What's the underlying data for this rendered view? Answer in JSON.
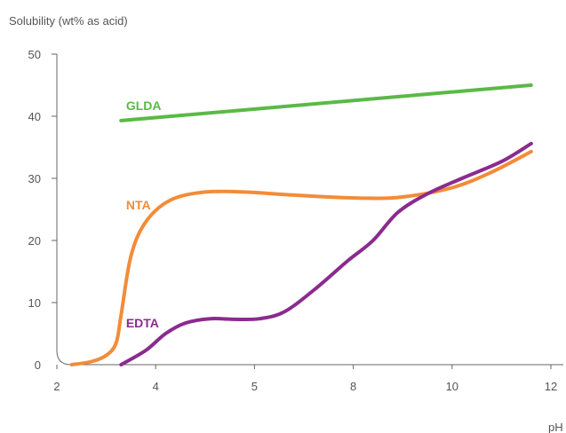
{
  "chart_data": {
    "type": "line",
    "ylabel": "Solubility (wt% as acid)",
    "xlabel": "pH",
    "x_ticks": [
      "2",
      "4",
      "5",
      "8",
      "10",
      "12"
    ],
    "y_ticks": [
      "0",
      "10",
      "20",
      "30",
      "40",
      "50"
    ],
    "ylim": [
      0,
      50
    ],
    "grid": false,
    "series": [
      {
        "name": "GLDA",
        "color": "#5bb947",
        "points": [
          [
            3.3,
            39.3
          ],
          [
            11.6,
            45.0
          ]
        ]
      },
      {
        "name": "NTA",
        "color": "#f28c38",
        "points": [
          [
            2.3,
            0.0
          ],
          [
            2.7,
            0.5
          ],
          [
            3.0,
            1.5
          ],
          [
            3.2,
            3.5
          ],
          [
            3.3,
            8.0
          ],
          [
            3.5,
            17.5
          ],
          [
            3.8,
            23.0
          ],
          [
            4.3,
            26.5
          ],
          [
            5.0,
            27.8
          ],
          [
            5.8,
            27.8
          ],
          [
            6.6,
            27.4
          ],
          [
            7.5,
            27.0
          ],
          [
            8.3,
            26.8
          ],
          [
            9.0,
            27.0
          ],
          [
            10.0,
            28.5
          ],
          [
            10.8,
            31.0
          ],
          [
            11.6,
            34.3
          ]
        ]
      },
      {
        "name": "EDTA",
        "color": "#8a2b8e",
        "points": [
          [
            3.3,
            0.0
          ],
          [
            3.8,
            2.3
          ],
          [
            4.2,
            5.0
          ],
          [
            4.6,
            6.7
          ],
          [
            5.1,
            7.4
          ],
          [
            5.6,
            7.3
          ],
          [
            6.1,
            7.4
          ],
          [
            6.6,
            8.5
          ],
          [
            7.2,
            12.0
          ],
          [
            7.9,
            16.8
          ],
          [
            8.4,
            20.0
          ],
          [
            8.9,
            24.5
          ],
          [
            9.5,
            27.5
          ],
          [
            10.2,
            30.0
          ],
          [
            11.0,
            32.7
          ],
          [
            11.6,
            35.6
          ]
        ]
      }
    ],
    "labels": [
      {
        "text": "GLDA",
        "color": "#5bb947",
        "x": 3.4,
        "y": 41.0
      },
      {
        "text": "NTA",
        "color": "#f28c38",
        "x": 3.4,
        "y": 25.0
      },
      {
        "text": "EDTA",
        "color": "#8a2b8e",
        "x": 3.4,
        "y": 6.0
      }
    ],
    "colors": {
      "axis": "#666666",
      "text": "#555555"
    }
  }
}
